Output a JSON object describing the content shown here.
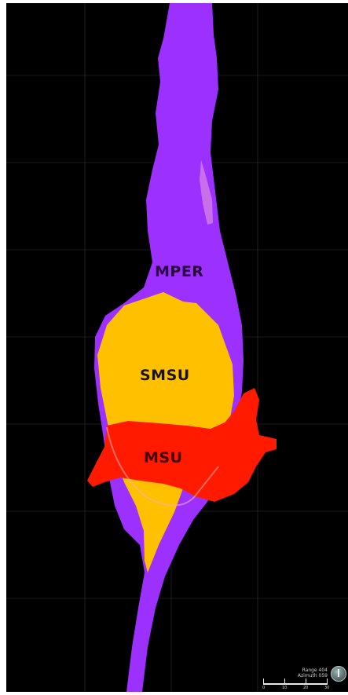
{
  "labels": {
    "mper": "MPER",
    "smsu": "SMSU",
    "msu": "MSU"
  },
  "scale": {
    "line1": "Range 404",
    "line2": "Azimuth 059",
    "ticks": [
      "0",
      "10",
      "20",
      "30"
    ]
  },
  "colors": {
    "background": "#000000",
    "mper": "#9b30ff",
    "smsu": "#ffc000",
    "msu": "#ff1a00",
    "grid": "#3a3a3a"
  },
  "icons": {
    "compass": "compass-icon"
  }
}
